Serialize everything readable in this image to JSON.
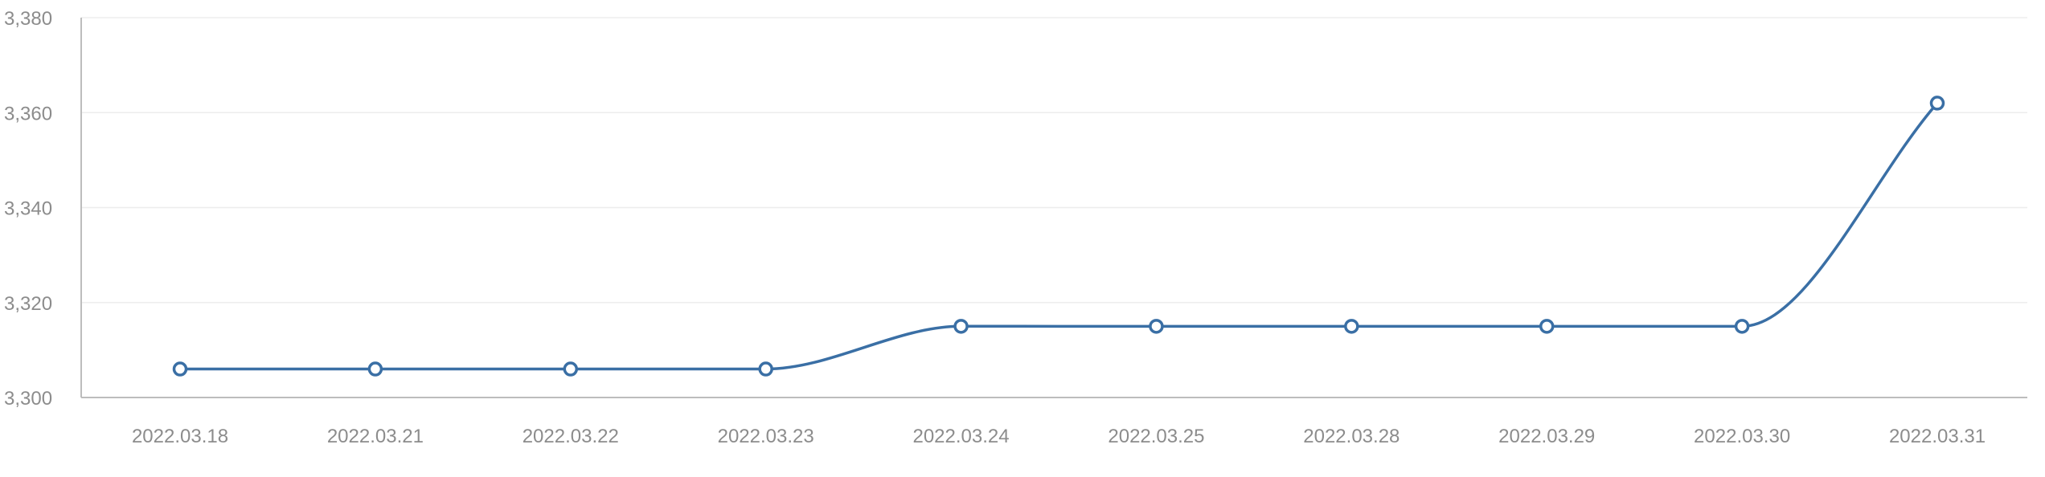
{
  "chart_data": {
    "type": "line",
    "x": [
      "2022.03.18",
      "2022.03.21",
      "2022.03.22",
      "2022.03.23",
      "2022.03.24",
      "2022.03.25",
      "2022.03.28",
      "2022.03.29",
      "2022.03.30",
      "2022.03.31"
    ],
    "series": [
      {
        "values": [
          3306,
          3306,
          3306,
          3306,
          3315,
          3315,
          3315,
          3315,
          3315,
          3362
        ]
      }
    ],
    "ylim": [
      3300,
      3380
    ],
    "yticks": [
      3300,
      3320,
      3340,
      3360,
      3380
    ],
    "ytick_labels": [
      "3,300",
      "3,320",
      "3,340",
      "3,360",
      "3,380"
    ],
    "grid": true,
    "legend": "none",
    "title": "",
    "xlabel": "",
    "ylabel": "",
    "line_color": "#3a6fa5",
    "marker_fill": "#ffffff"
  }
}
